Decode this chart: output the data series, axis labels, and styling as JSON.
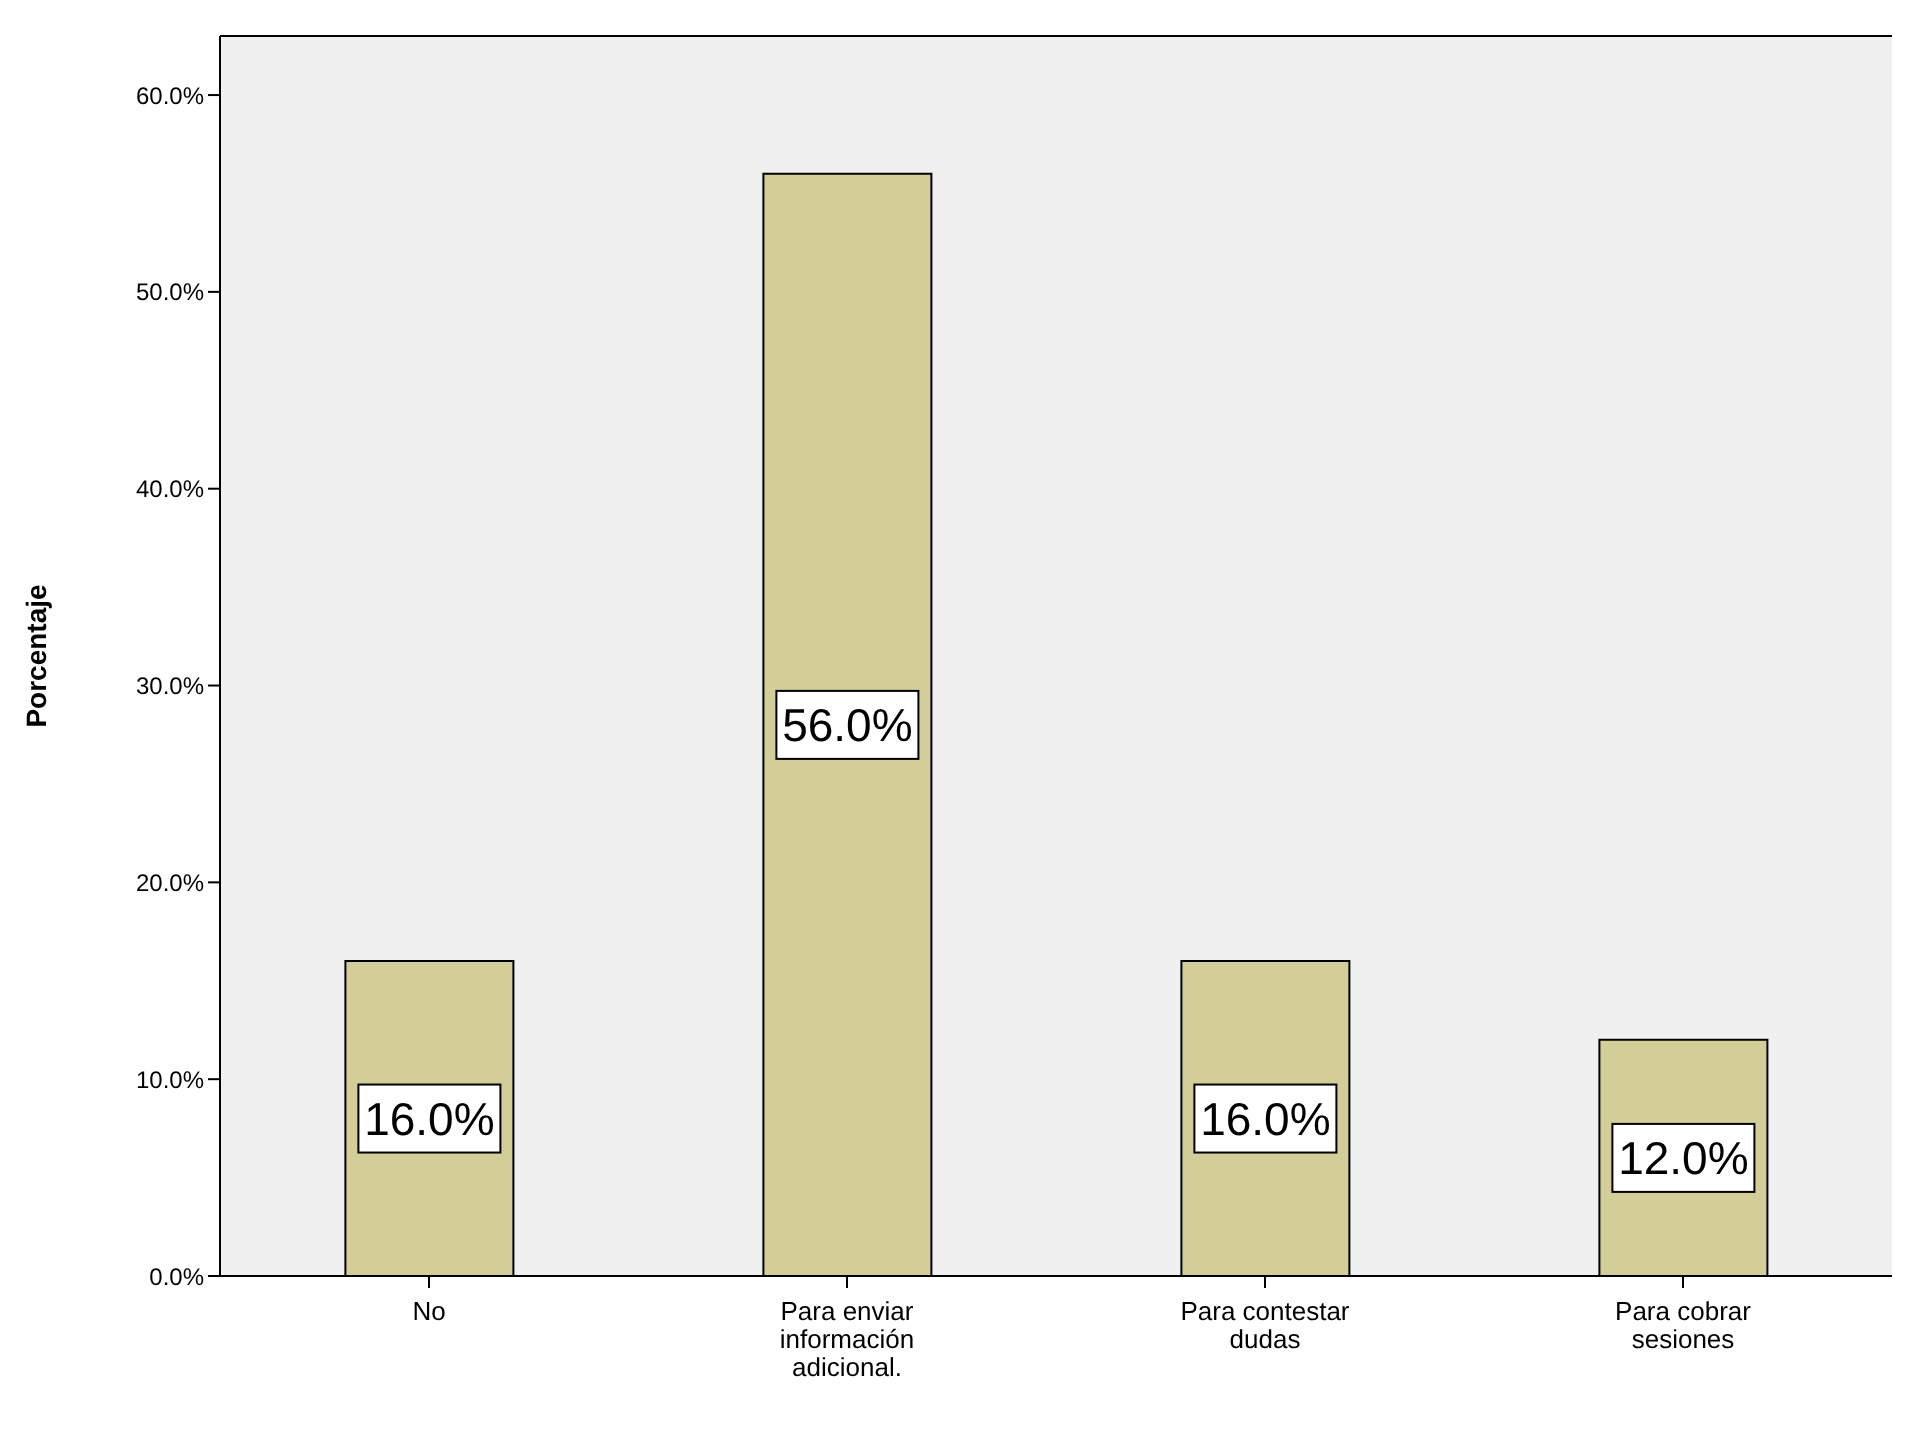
{
  "chart_data": {
    "type": "bar",
    "ylabel": "Porcentaje",
    "categories": [
      "No",
      "Para enviar información adicional.",
      "Para contestar dudas",
      "Para cobrar sesiones"
    ],
    "values": [
      16,
      56,
      16,
      12
    ],
    "value_labels": [
      "16.0%",
      "56.0%",
      "16.0%",
      "12.0%"
    ],
    "color": "#d3ce97",
    "ylim": [
      0,
      63
    ],
    "yticks": [
      {
        "value": 0,
        "label": "0.0%"
      },
      {
        "value": 10,
        "label": "10.0%"
      },
      {
        "value": 20,
        "label": "20.0%"
      },
      {
        "value": 30,
        "label": "30.0%"
      },
      {
        "value": 40,
        "label": "40.0%"
      },
      {
        "value": 50,
        "label": "50.0%"
      },
      {
        "value": 60,
        "label": "60.0%"
      }
    ]
  }
}
